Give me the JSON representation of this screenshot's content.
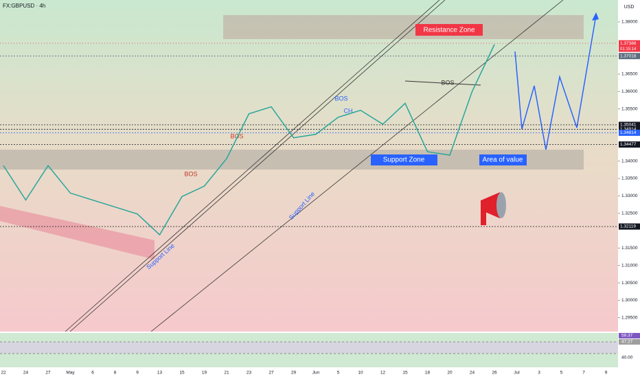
{
  "header": {
    "symbol": "FX:GBPUSD · 4h",
    "currency": "USD",
    "countdown": "01:15:14"
  },
  "chart_data": {
    "type": "line",
    "categories": [
      "22",
      "24",
      "27",
      "May",
      "6",
      "8",
      "9",
      "13",
      "15",
      "19",
      "21",
      "23",
      "27",
      "29",
      "Jun",
      "5",
      "10",
      "12",
      "15",
      "18",
      "20",
      "24",
      "26",
      "Jul",
      "3",
      "5",
      "7",
      "9"
    ],
    "color": "#26a69a",
    "values": [
      1.3387,
      1.3288,
      1.3387,
      1.3308,
      1.3288,
      1.3268,
      1.3248,
      1.3188,
      1.3298,
      1.3328,
      1.3407,
      1.3536,
      1.3556,
      1.3467,
      1.3477,
      1.3526,
      1.3546,
      1.3506,
      1.3566,
      1.3427,
      1.3417,
      1.36,
      1.3735,
      null,
      null,
      null,
      null,
      null
    ],
    "ylim": [
      1.291,
      1.3863
    ],
    "yticks": [
      {
        "value": 1.38,
        "label": "1.38000"
      },
      {
        "value": 1.365,
        "label": "1.36500"
      },
      {
        "value": 1.36,
        "label": "1.36000"
      },
      {
        "value": 1.355,
        "label": "1.35500"
      },
      {
        "value": 1.34,
        "label": "1.34000"
      },
      {
        "value": 1.335,
        "label": "1.33500"
      },
      {
        "value": 1.33,
        "label": "1.33000"
      },
      {
        "value": 1.325,
        "label": "1.32500"
      },
      {
        "value": 1.315,
        "label": "1.31500"
      },
      {
        "value": 1.31,
        "label": "1.31000"
      },
      {
        "value": 1.305,
        "label": "1.30500"
      },
      {
        "value": 1.3,
        "label": "1.30000"
      },
      {
        "value": 1.295,
        "label": "1.29500"
      }
    ],
    "price_tags": [
      {
        "value": 1.37386,
        "label": "1.37386",
        "color": "#f23645"
      },
      {
        "value": 1.37018,
        "label": "1.37018",
        "color": "#5d6d7e"
      },
      {
        "value": 1.35041,
        "label": "1.35041",
        "color": "#131722"
      },
      {
        "value": 1.34914,
        "label": "1.34914",
        "color": "#131722"
      },
      {
        "value": 1.34814,
        "label": "1.34814",
        "color": "#2962ff"
      },
      {
        "value": 1.34477,
        "label": "1.34477",
        "color": "#131722"
      },
      {
        "value": 1.32119,
        "label": "1.32119",
        "color": "#131722"
      }
    ],
    "annotations": [
      "Resistance Zone",
      "Support Zone",
      "Area of value",
      "BOS",
      "BOS",
      "BOS",
      "BOS",
      "CH",
      "Support Line",
      "Support Line"
    ],
    "rsi_labels": [
      "59.37",
      "47.27",
      "40.00"
    ]
  }
}
